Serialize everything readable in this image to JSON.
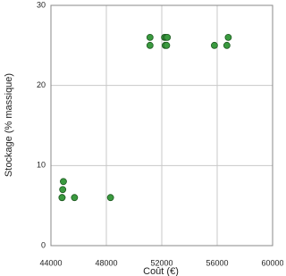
{
  "chart_data": {
    "type": "scatter",
    "x_label": "Coût (€)",
    "y_label": "Stockage (% massique)",
    "x": [
      44800,
      44800,
      44850,
      44900,
      45700,
      48300,
      51150,
      51150,
      52200,
      52300,
      52250,
      52350,
      52400,
      55800,
      56700,
      56800
    ],
    "values": [
      6,
      6,
      7,
      8,
      6,
      6,
      26,
      25,
      26,
      26,
      25,
      25,
      26,
      25,
      25,
      26
    ],
    "color": "#3a9a3f",
    "xlim": [
      44000,
      60000
    ],
    "xticks": [
      44000,
      48000,
      52000,
      56000,
      60000
    ],
    "ylim": [
      0,
      30
    ],
    "yticks": [
      0,
      10,
      20,
      30
    ],
    "grid": true
  }
}
